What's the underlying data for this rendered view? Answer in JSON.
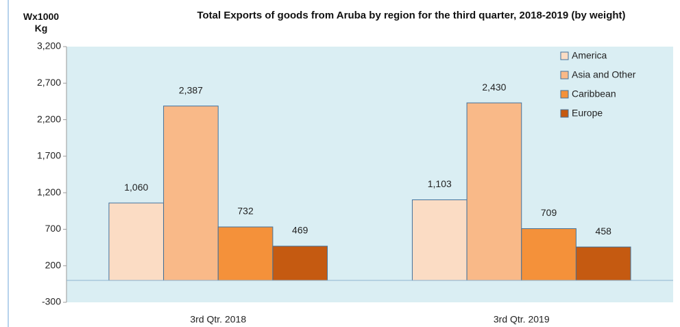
{
  "chart_data": {
    "type": "bar",
    "title": "Total Exports of goods from Aruba  by region for the third quarter, 2018-2019  (by weight)",
    "y_label": "Wx1000 Kg",
    "categories": [
      "3rd Qtr. 2018",
      "3rd Qtr. 2019"
    ],
    "series": [
      {
        "name": "America",
        "color": "#fbdcc4",
        "values": [
          1060,
          1103
        ],
        "value_labels": [
          "1,060",
          "1,103"
        ]
      },
      {
        "name": "Asia and Other",
        "color": "#f9b988",
        "values": [
          2387,
          2430
        ],
        "value_labels": [
          "2,387",
          "2,430"
        ]
      },
      {
        "name": "Caribbean",
        "color": "#f4913a",
        "values": [
          732,
          709
        ]
      },
      {
        "name": "Europe",
        "color": "#c55a11",
        "values": [
          469,
          458
        ]
      }
    ],
    "ylim": [
      -300,
      3200
    ],
    "yticks": [
      -300,
      200,
      700,
      {
        "value": 1200,
        "label": "1,200"
      },
      {
        "value": 1700,
        "label": "1,700"
      },
      {
        "value": 2200,
        "label": "2,200"
      },
      {
        "value": 2700,
        "label": "2,700"
      },
      {
        "value": 3200,
        "label": "3,200"
      }
    ],
    "grid": false,
    "legend": "upper right"
  }
}
